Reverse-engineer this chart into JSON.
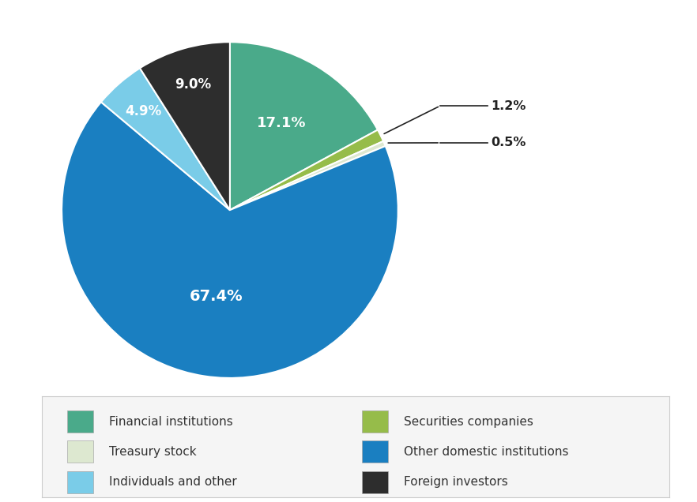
{
  "labels": [
    "Financial institutions",
    "Securities companies",
    "Treasury stock",
    "Other domestic institutions",
    "Individuals and other",
    "Foreign investors"
  ],
  "values": [
    17.1,
    1.2,
    0.5,
    67.4,
    4.9,
    9.0
  ],
  "colors": [
    "#4aaa8a",
    "#96bc4a",
    "#dde8d0",
    "#1a7fc1",
    "#7acce8",
    "#2d2d2d"
  ],
  "pct_labels": [
    "17.1%",
    "1.2%",
    "0.5%",
    "67.4%",
    "4.9%",
    "9.0%"
  ],
  "label_inside": [
    true,
    false,
    false,
    true,
    true,
    true
  ],
  "annotation_indices": [
    1,
    2
  ],
  "annotation_text": [
    "1.2%",
    "0.5%"
  ],
  "bg_color": "#ffffff",
  "legend_labels_col1": [
    "Financial institutions",
    "Treasury stock",
    "Individuals and other"
  ],
  "legend_labels_col2": [
    "Securities companies",
    "Other domestic institutions",
    "Foreign investors"
  ],
  "legend_colors_col1": [
    "#4aaa8a",
    "#dde8d0",
    "#7acce8"
  ],
  "legend_colors_col2": [
    "#96bc4a",
    "#1a7fc1",
    "#2d2d2d"
  ],
  "text_color_dark": "#333333",
  "legend_bg": "#f5f5f5",
  "legend_border": "#cccccc"
}
